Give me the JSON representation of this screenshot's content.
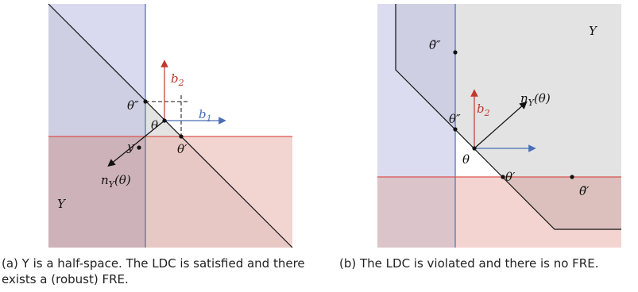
{
  "panel_a": {
    "labels": {
      "b2": "b",
      "b2_sub": "2",
      "b1": "b",
      "b1_sub": "1",
      "theta_double_prime": "θ″",
      "theta": "θ",
      "theta_prime": "θ′",
      "y": "y",
      "normal": "n",
      "normal_sub": "Y",
      "normal_arg": "(θ)",
      "set_Y": "Y"
    },
    "colors": {
      "blue_region": "#d9d9ef",
      "red_region": "#f3d4d1",
      "overlap_region": "#cdb3ba",
      "gray_region": "#e4e4e4",
      "red_line": "#d9534f",
      "blue_line": "#4a6fb5"
    }
  },
  "panel_b": {
    "labels": {
      "set_Y": "Y",
      "theta_tilde_double_prime": "θ̃″",
      "theta_double_prime": "θ″",
      "normal": "n",
      "normal_sub": "Y",
      "normal_arg": "(θ)",
      "b2": "b",
      "b2_sub": "2",
      "theta": "θ",
      "theta_prime": "θ′",
      "theta_tilde_prime": "θ̃′"
    }
  },
  "captions": {
    "a": "(a) Y is a half-space. The LDC is satisfied and there exists a (robust) FRE.",
    "b": "(b) The LDC is violated and there is no FRE."
  }
}
